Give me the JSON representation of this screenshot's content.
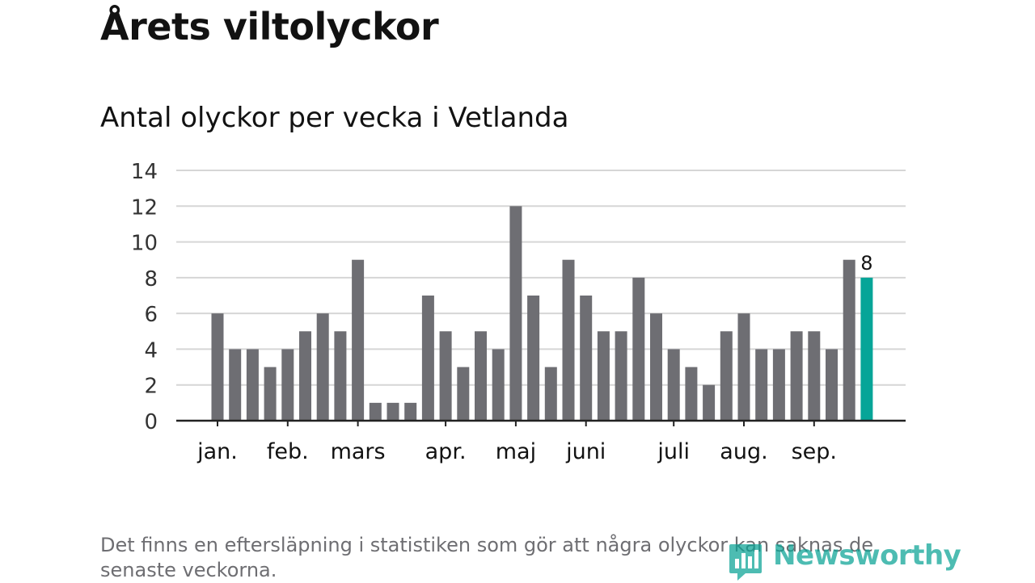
{
  "header": {
    "title": "Årets viltolyckor",
    "subtitle": "Antal olyckor per vecka i Vetlanda"
  },
  "footer": {
    "note": "Det finns en eftersläpning i statistiken som gör att några olyckor kan saknas de senaste veckorna.",
    "brand": "Newsworthy"
  },
  "colors": {
    "bar": "#6e6e73",
    "highlight": "#06a598",
    "gridline": "#d6d6d6",
    "axis": "#222222",
    "text": "#121212",
    "brand": "#0aa395"
  },
  "chart_data": {
    "type": "bar",
    "title": "Antal olyckor per vecka i Vetlanda",
    "xlabel": "",
    "ylabel": "",
    "ylim": [
      0,
      14
    ],
    "yticks": [
      0,
      2,
      4,
      6,
      8,
      10,
      12,
      14
    ],
    "grid": true,
    "series": [
      {
        "name": "Antal olyckor",
        "values": [
          6,
          4,
          4,
          3,
          4,
          5,
          6,
          5,
          9,
          1,
          1,
          1,
          7,
          5,
          3,
          5,
          4,
          12,
          7,
          3,
          9,
          7,
          5,
          5,
          8,
          6,
          4,
          3,
          2,
          5,
          6,
          4,
          4,
          5,
          5,
          4,
          9,
          8
        ]
      }
    ],
    "highlight_index": 37,
    "highlight_label": "8",
    "month_ticks": [
      {
        "label": "jan.",
        "bar_index": 0
      },
      {
        "label": "feb.",
        "bar_index": 4
      },
      {
        "label": "mars",
        "bar_index": 8
      },
      {
        "label": "apr.",
        "bar_index": 13
      },
      {
        "label": "maj",
        "bar_index": 17
      },
      {
        "label": "juni",
        "bar_index": 21
      },
      {
        "label": "juli",
        "bar_index": 26
      },
      {
        "label": "aug.",
        "bar_index": 30
      },
      {
        "label": "sep.",
        "bar_index": 34
      }
    ]
  }
}
